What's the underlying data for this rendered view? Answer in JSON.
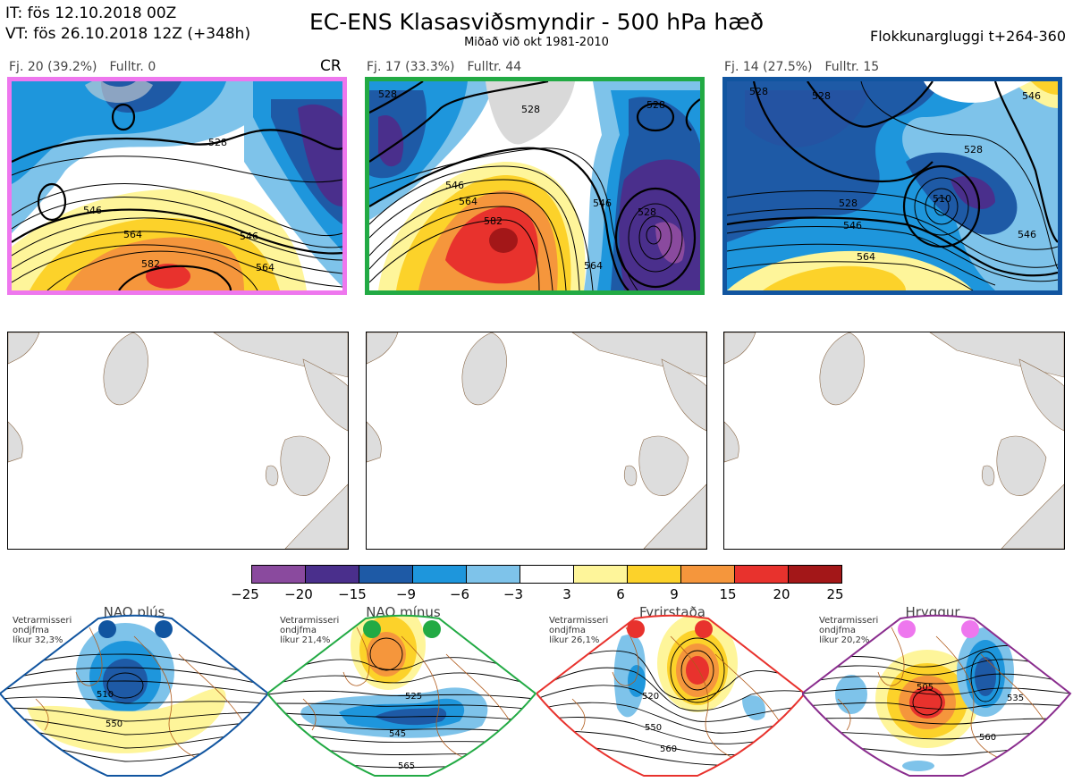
{
  "header": {
    "it": "IT: fös 12.10.2018 00Z",
    "vt": "VT: fös 26.10.2018 12Z  (+348h)",
    "title": "EC-ENS Klasasviðsmyndir - 500 hPa hæð",
    "subtitle": "Miðað við okt 1981-2010",
    "window": "Flokkunargluggi t+264-360"
  },
  "clusters": [
    {
      "label": "Fj. 20 (39.2%)",
      "control": "Fulltr. 0",
      "tag": "CR",
      "border": "#ee77ee",
      "contours": [
        "528",
        "546",
        "564",
        "582",
        "546",
        "564"
      ]
    },
    {
      "label": "Fj. 17 (33.3%)",
      "control": "Fulltr. 44",
      "tag": "",
      "border": "#22aa44",
      "contours": [
        "528",
        "528",
        "546",
        "564",
        "582",
        "546",
        "528",
        "528",
        "564"
      ]
    },
    {
      "label": "Fj. 14 (27.5%)",
      "control": "Fulltr. 15",
      "tag": "",
      "border": "#1155a0",
      "contours": [
        "528",
        "528",
        "546",
        "528",
        "546",
        "510",
        "528",
        "546",
        "564"
      ]
    }
  ],
  "colorbar": {
    "ticks": [
      "−25",
      "−20",
      "−15",
      "−9",
      "−6",
      "−3",
      "3",
      "6",
      "9",
      "15",
      "20",
      "25"
    ],
    "colors": [
      "#8a4a9e",
      "#4a2f8c",
      "#1e5aa6",
      "#1e96dc",
      "#7ec3ea",
      "#ffffff",
      "#fef59a",
      "#fcd22a",
      "#f5963c",
      "#e8322d",
      "#a31718"
    ]
  },
  "regimes": [
    {
      "name": "NAO plús",
      "line1": "Vetrarmisseri",
      "line2": "ondjfma",
      "line3": "líkur 32,3%",
      "dot": "#1155a0",
      "frame": "#1155a0",
      "c1": "510",
      "c2": "550"
    },
    {
      "name": "NAO mínus",
      "line1": "Vetrarmisseri",
      "line2": "ondjfma",
      "line3": "líkur 21,4%",
      "dot": "#22aa44",
      "frame": "#22aa44",
      "c1": "525",
      "c2": "545",
      "c3": "565"
    },
    {
      "name": "Fyrirstaða",
      "line1": "Vetrarmisseri",
      "line2": "ondjfma",
      "line3": "líkur 26,1%",
      "dot": "#e8322d",
      "frame": "#e8322d",
      "c1": "520",
      "c2": "550",
      "c3": "560"
    },
    {
      "name": "Hryggur",
      "line1": "Vetrarmisseri",
      "line2": "ondjfma",
      "line3": "líkur 20,2%",
      "dot": "#ee77ee",
      "frame": "#8a2d8e",
      "c1": "505",
      "c2": "535",
      "c3": "560"
    }
  ]
}
